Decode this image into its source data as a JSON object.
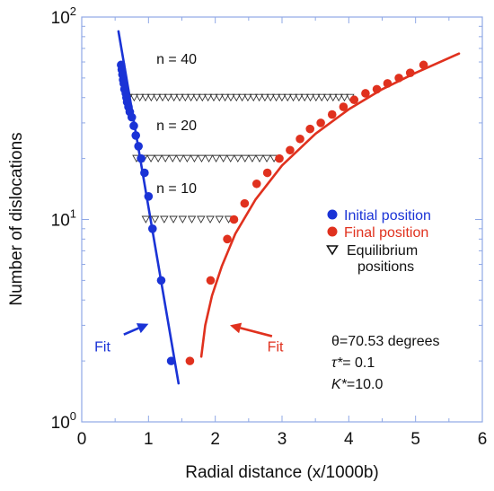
{
  "chart_data": {
    "type": "scatter",
    "xlabel": "Radial distance (x/1000b)",
    "ylabel": "Number of dislocations",
    "xlim": [
      0,
      6
    ],
    "ylim": [
      1,
      100
    ],
    "yscale": "log",
    "grid": false,
    "xticks": [
      "0",
      "1",
      "2",
      "3",
      "4",
      "5",
      "6"
    ],
    "yticks": [
      {
        "base": "10",
        "exp": "0",
        "value": 1
      },
      {
        "base": "10",
        "exp": "1",
        "value": 10
      },
      {
        "base": "10",
        "exp": "2",
        "value": 100
      }
    ],
    "legend_position": "right",
    "series": [
      {
        "name": "Initial position",
        "color": "#1a33d6",
        "marker": "filled-circle",
        "x": [
          0.59,
          0.6,
          0.61,
          0.62,
          0.63,
          0.64,
          0.66,
          0.67,
          0.68,
          0.7,
          0.72,
          0.75,
          0.78,
          0.81,
          0.85,
          0.89,
          0.94,
          1.0,
          1.06,
          1.19,
          1.34
        ],
        "y": [
          58,
          55,
          52,
          49,
          47,
          44,
          42,
          40,
          38,
          36,
          34,
          32,
          29,
          26,
          23,
          20,
          17,
          13,
          9,
          5,
          2
        ]
      },
      {
        "name": "Final position",
        "color": "#e0311e",
        "marker": "filled-circle",
        "x": [
          1.62,
          1.93,
          2.18,
          2.28,
          2.44,
          2.62,
          2.78,
          2.96,
          3.12,
          3.27,
          3.42,
          3.58,
          3.75,
          3.92,
          4.08,
          4.25,
          4.42,
          4.58,
          4.75,
          4.92,
          5.12
        ],
        "y": [
          2,
          5,
          8,
          10,
          12,
          15,
          17,
          20,
          22,
          25,
          28,
          30,
          33,
          36,
          39,
          42,
          44,
          47,
          50,
          53,
          58
        ]
      },
      {
        "name": "Equilibrium positions",
        "color": "#333333",
        "marker": "open-triangle-down",
        "groups": [
          {
            "n": 40,
            "y": 40,
            "x_start": 0.7,
            "x_end": 4.02,
            "count": 40
          },
          {
            "n": 20,
            "y": 20,
            "x_start": 0.82,
            "x_end": 2.88,
            "count": 20
          },
          {
            "n": 10,
            "y": 10,
            "x_start": 0.96,
            "x_end": 2.2,
            "count": 10
          }
        ]
      }
    ],
    "fits": [
      {
        "label": "Fit",
        "color": "#1a33d6",
        "x": [
          0.55,
          1.45
        ],
        "y": [
          85,
          1.55
        ]
      },
      {
        "label": "Fit",
        "color": "#e0311e",
        "x": [
          1.79,
          1.85,
          1.95,
          2.1,
          2.3,
          2.6,
          3.0,
          3.5,
          4.0,
          4.5,
          5.0,
          5.65
        ],
        "y": [
          2.1,
          3.0,
          4.2,
          5.9,
          8.5,
          12.5,
          18.5,
          26.5,
          35.0,
          44.0,
          53.0,
          66.0
        ]
      }
    ],
    "annotations": {
      "n_labels": [
        {
          "text": "n = 40",
          "x": 1.42,
          "y": 62
        },
        {
          "text": "n = 20",
          "x": 1.42,
          "y": 29
        },
        {
          "text": "n = 10",
          "x": 1.42,
          "y": 14.2
        }
      ],
      "fit_labels": [
        {
          "text": "Fit",
          "color": "#1a33d6",
          "x": 0.31,
          "y": 2.35,
          "arrow_from": [
            0.63,
            2.7
          ],
          "arrow_to": [
            1.0,
            3.05
          ]
        },
        {
          "text": "Fit",
          "color": "#e0311e",
          "x": 2.9,
          "y": 2.35,
          "arrow_from": [
            2.85,
            2.65
          ],
          "arrow_to": [
            2.22,
            3.0
          ]
        }
      ],
      "params": {
        "line1": "θ=70.53 degrees",
        "line2_var": "τ*",
        "line2_val": "= 0.1",
        "line3_var": "K*",
        "line3_val": "=10.0"
      }
    },
    "legend": {
      "initial": "Initial position",
      "final": "Final position",
      "equilibrium_line1": "Equilibrium",
      "equilibrium_line2": "positions"
    }
  }
}
